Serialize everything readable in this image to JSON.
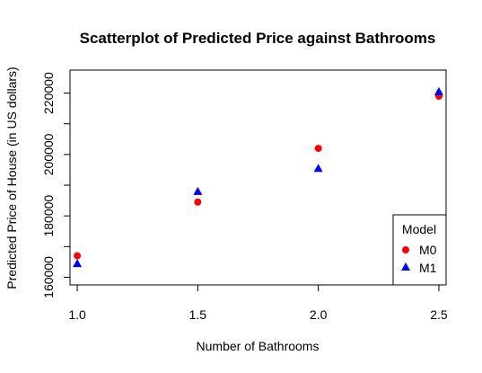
{
  "chart_data": {
    "type": "scatter",
    "title": "Scatterplot of Predicted Price against Bathrooms",
    "xlabel": "Number of Bathrooms",
    "ylabel": "Predicted Price of House (in US dollars)",
    "xlim": [
      0.97,
      2.53
    ],
    "ylim": [
      157500,
      227500
    ],
    "xticks": [
      "1.0",
      "1.5",
      "2.0",
      "2.5"
    ],
    "yticks": [
      "160000",
      "180000",
      "200000",
      "220000"
    ],
    "grid": false,
    "legend": {
      "title": "Model",
      "placement": "bottom-right",
      "entries": [
        "M0",
        "M1"
      ]
    },
    "series": [
      {
        "name": "M0",
        "marker": "circle",
        "color": "#ff0000",
        "x": [
          1.0,
          1.5,
          2.0,
          2.5
        ],
        "y": [
          167000,
          184500,
          202000,
          219000
        ]
      },
      {
        "name": "M1",
        "marker": "triangle",
        "color": "#0000ff",
        "x": [
          1.0,
          1.5,
          2.0,
          2.5
        ],
        "y": [
          164500,
          188000,
          195500,
          220500
        ]
      }
    ]
  }
}
